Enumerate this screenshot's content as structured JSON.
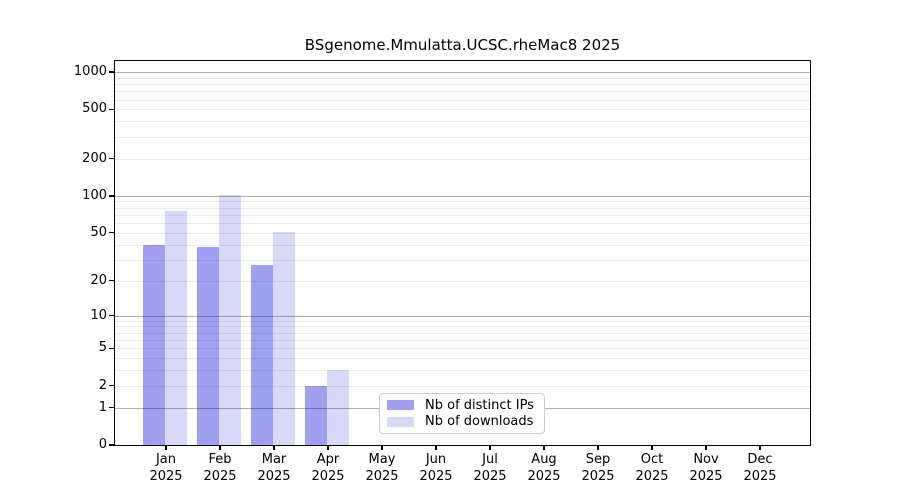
{
  "title": "BSgenome.Mmulatta.UCSC.rheMac8 2025",
  "chart_data": {
    "type": "bar",
    "title": "BSgenome.Mmulatta.UCSC.rheMac8 2025",
    "year": "2025",
    "months": [
      "Jan",
      "Feb",
      "Mar",
      "Apr",
      "May",
      "Jun",
      "Jul",
      "Aug",
      "Sep",
      "Oct",
      "Nov",
      "Dec"
    ],
    "categories": [
      "Jan 2025",
      "Feb 2025",
      "Mar 2025",
      "Apr 2025",
      "May 2025",
      "Jun 2025",
      "Jul 2025",
      "Aug 2025",
      "Sep 2025",
      "Oct 2025",
      "Nov 2025",
      "Dec 2025"
    ],
    "series": [
      {
        "name": "Nb of distinct IPs",
        "color": "#a0a0f0",
        "values": [
          40,
          38,
          27,
          2,
          0,
          0,
          0,
          0,
          0,
          0,
          0,
          0
        ]
      },
      {
        "name": "Nb of downloads",
        "color": "#d8d8f8",
        "values": [
          75,
          102,
          51,
          3,
          0,
          0,
          0,
          0,
          0,
          0,
          0,
          0
        ]
      }
    ],
    "yscale": "log1p",
    "ylim": [
      0,
      1000
    ],
    "yticks": [
      0,
      1,
      2,
      5,
      10,
      20,
      50,
      100,
      200,
      500,
      1000
    ],
    "grid": true,
    "legend": {
      "position": "lower center",
      "entries": [
        "Nb of distinct IPs",
        "Nb of downloads"
      ]
    },
    "colors": {
      "axis": "#000000",
      "grid_major": "#b0b0b0",
      "grid_minor": "#e8e8e8",
      "background": "#ffffff"
    }
  }
}
